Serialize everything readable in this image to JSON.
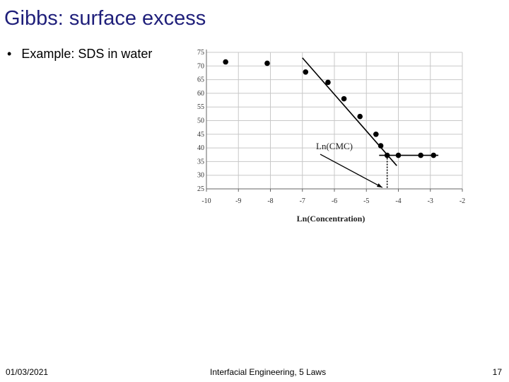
{
  "slide": {
    "title": "Gibbs: surface excess",
    "bullet": "Example: SDS in water",
    "footer_date": "01/03/2021",
    "footer_center": "Interfacial Engineering, 5 Laws",
    "page_number": "17"
  },
  "chart_data": {
    "type": "scatter",
    "title": "",
    "xlabel": "Ln(Concentration)",
    "ylabel": "",
    "xlim": [
      -10,
      -2
    ],
    "ylim": [
      25,
      75
    ],
    "xticks": [
      -10,
      -9,
      -8,
      -7,
      -6,
      -5,
      -4,
      -3,
      -2
    ],
    "yticks": [
      25,
      30,
      35,
      40,
      45,
      50,
      55,
      60,
      65,
      70,
      75
    ],
    "grid": true,
    "series": [
      {
        "x": [
          -9.4,
          -8.1,
          -6.9,
          -6.2,
          -5.7,
          -5.2,
          -4.7,
          -4.55,
          -4.35,
          -4.0,
          -3.3,
          -2.9
        ],
        "y": [
          71.5,
          71.0,
          67.8,
          64.0,
          58.0,
          51.5,
          45.0,
          40.8,
          37.3,
          37.3,
          37.3,
          37.3
        ]
      }
    ],
    "fit_lines": [
      {
        "x": [
          -7.0,
          -4.05
        ],
        "y": [
          73.0,
          33.5
        ]
      },
      {
        "x": [
          -4.6,
          -2.75
        ],
        "y": [
          37.3,
          37.3
        ]
      }
    ],
    "annotation": {
      "label": "Ln(CMC)",
      "x": -6.0,
      "y": 39.5,
      "arrow_to": [
        -4.5,
        25.5
      ]
    },
    "cmc_marker": {
      "x": -4.35,
      "y_from": 37.3,
      "y_to": 25
    },
    "colors": {
      "marks": "#000000",
      "grid": "#c8c8c8",
      "title": "#1f1f7a"
    }
  }
}
